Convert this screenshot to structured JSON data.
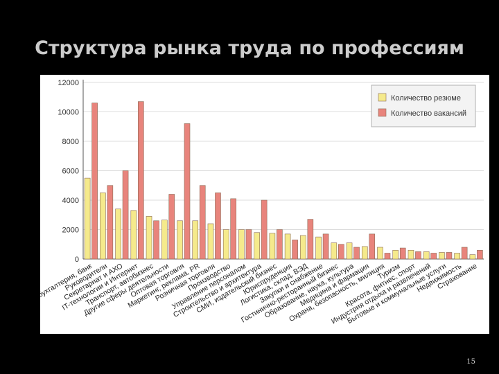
{
  "slide": {
    "title": "Структура рынка труда по профессиям",
    "page_number": "15"
  },
  "chart_data": {
    "type": "bar",
    "title": "",
    "xlabel": "",
    "ylabel": "",
    "ylim": [
      0,
      12000
    ],
    "yticks": [
      {
        "value": 0,
        "label": "0"
      },
      {
        "value": 2000,
        "label": "2000"
      },
      {
        "value": 4000,
        "label": "4000"
      },
      {
        "value": 6000,
        "label": "6000"
      },
      {
        "value": 8000,
        "label": "8000"
      },
      {
        "value": 10000,
        "label": "10000"
      },
      {
        "value": 12000,
        "label": "12000"
      }
    ],
    "grid": true,
    "legend_position": "top-right",
    "categories": [
      "Финансы, бухгалтерия, банк",
      "Руководители",
      "Секретариат и АХО",
      "IT-технологии и Интернет",
      "Транспорт, автобизнес",
      "Другие сферы деятельности",
      "Оптовая торговля",
      "Маркетинг, реклама, PR",
      "Розничная торговля",
      "Производство",
      "Управление персоналом",
      "Строительство и архитектура",
      "СМИ, издательский бизнес",
      "Юриспруденция",
      "Логистика, склад, ВЭД",
      "Закупки и снабжение",
      "Гостинично-ресторанный бизнес",
      "Образование, наука, культура",
      "Медицина и фармация",
      "Охрана, безопасность, милиция",
      "Туризм",
      "Красота, фитнес, спорт",
      "Индустрия отдыха и развлечений",
      "Бытовые и коммунальные услуги",
      "Недвижимость",
      "Страхование"
    ],
    "series": [
      {
        "name": "Количество резюме",
        "color": "#f5ea8c",
        "values": [
          5500,
          4500,
          3400,
          3300,
          2900,
          2650,
          2600,
          2600,
          2400,
          2000,
          2000,
          1800,
          1750,
          1700,
          1600,
          1500,
          1100,
          1100,
          850,
          800,
          600,
          600,
          500,
          450,
          400,
          300
        ]
      },
      {
        "name": "Количество вакансий",
        "color": "#e8847c",
        "values": [
          10600,
          5000,
          6000,
          10700,
          2600,
          4400,
          9200,
          5000,
          4500,
          4100,
          2000,
          4000,
          2000,
          1300,
          2700,
          1700,
          1000,
          800,
          1700,
          400,
          750,
          500,
          400,
          450,
          800,
          600
        ]
      }
    ]
  }
}
